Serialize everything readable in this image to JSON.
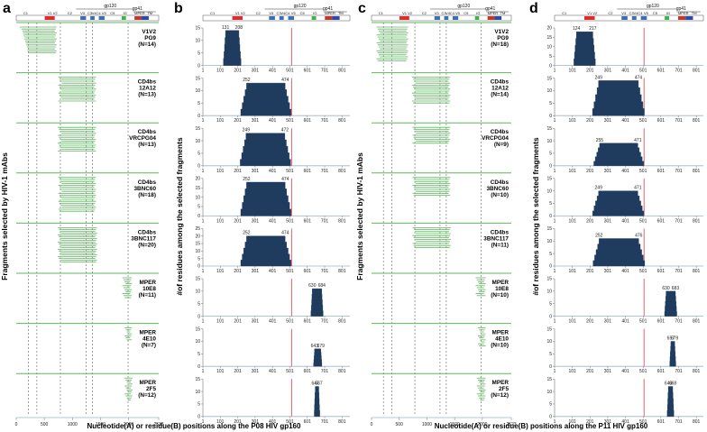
{
  "figure": {
    "panel_letters": [
      "a",
      "b",
      "c",
      "d"
    ],
    "frag_ylabel": "Fragments selected by HIV-1 mAbs",
    "hist_ylabel": "#of residues among the selected fragments",
    "xlabel_left": "Nucleotide(A) or residue(B) positions along the P08 HIV gp160",
    "xlabel_right": "Nucleotide(A) or residue(B) positions along the P11 HIV gp160"
  },
  "env_map": {
    "top_labels": [
      "gp120",
      "gp41"
    ],
    "regions": [
      "C1",
      "V1 V2",
      "C2",
      "V3",
      "C3",
      "V4",
      "C4",
      "V5",
      "C5",
      "IG",
      "MPER",
      "TM"
    ]
  },
  "row_labels": [
    [
      "V1V2",
      "PG9"
    ],
    [
      "CD4bs",
      "12A12"
    ],
    [
      "CD4bs",
      "VRCPG04"
    ],
    [
      "CD4bs",
      "3BNC60"
    ],
    [
      "CD4bs",
      "3BNC117"
    ],
    [
      "MPER",
      "10E8"
    ],
    [
      "MPER",
      "4E10"
    ],
    [
      "MPER",
      "2F5"
    ]
  ],
  "colors": {
    "bar": "#1f3b5e",
    "fragment": "#5cb85c",
    "marker": "#e8505b",
    "axis": "#9ab4cc"
  },
  "chart_data": [
    {
      "panel": "a",
      "type": "fragment-map",
      "x": {
        "label": "Nucleotide(A) or residue(B) positions along the P08 HIV gp160",
        "ticks": [
          0,
          500,
          1000,
          1500,
          2000,
          2538
        ],
        "range": [
          0,
          2538
        ]
      },
      "rows": [
        {
          "label": "V1V2 PG9",
          "n": 14,
          "start_nt": [
            60,
            90,
            110,
            120,
            130,
            140,
            150,
            160,
            170,
            180,
            190,
            200,
            205,
            210
          ],
          "end_nt": 720
        },
        {
          "label": "CD4bs 12A12",
          "n": 13,
          "start_nt": 750,
          "end_nt": 1420
        },
        {
          "label": "CD4bs VRCPG04",
          "n": 13,
          "start_nt": 740,
          "end_nt": 1420
        },
        {
          "label": "CD4bs 3BNC60",
          "n": 18,
          "start_nt": 750,
          "end_nt": 1420
        },
        {
          "label": "CD4bs 3BNC117",
          "n": 20,
          "start_nt": 740,
          "end_nt": 1440
        },
        {
          "label": "MPER 10E8",
          "n": 11,
          "start_nt": 1890,
          "end_nt": 2060
        },
        {
          "label": "MPER 4E10",
          "n": 7,
          "start_nt": 1930,
          "end_nt": 2060
        },
        {
          "label": "MPER 2F5",
          "n": 12,
          "start_nt": 1930,
          "end_nt": 2070
        }
      ]
    },
    {
      "panel": "b",
      "type": "area",
      "x": {
        "ticks": [
          1,
          101,
          201,
          301,
          401,
          501,
          601,
          701,
          801
        ],
        "range": [
          1,
          846
        ],
        "marker": 511
      },
      "histograms": [
        {
          "label": "V1V2 PG9",
          "ylim": [
            0,
            15
          ],
          "yticks": [
            0,
            5,
            10,
            15
          ],
          "plateau": 14,
          "start": 131,
          "end": 208,
          "start_label": "131",
          "end_label": "208"
        },
        {
          "label": "CD4bs 12A12",
          "ylim": [
            0,
            15
          ],
          "yticks": [
            0,
            5,
            10,
            15
          ],
          "plateau": 13,
          "start": 252,
          "end": 474,
          "start_label": "252",
          "end_label": "474"
        },
        {
          "label": "CD4bs VRCPG04",
          "ylim": [
            0,
            15
          ],
          "yticks": [
            0,
            5,
            10,
            15
          ],
          "plateau": 13,
          "start": 249,
          "end": 472,
          "start_label": "249",
          "end_label": "472"
        },
        {
          "label": "CD4bs 3BNC60",
          "ylim": [
            0,
            20
          ],
          "yticks": [
            0,
            5,
            10,
            15,
            20
          ],
          "plateau": 18,
          "start": 252,
          "end": 474,
          "start_label": "252",
          "end_label": "474"
        },
        {
          "label": "CD4bs 3BNC117",
          "ylim": [
            0,
            25
          ],
          "yticks": [
            0,
            5,
            10,
            15,
            20,
            25
          ],
          "plateau": 20,
          "start": 252,
          "end": 474,
          "start_label": "252",
          "end_label": "474"
        },
        {
          "label": "MPER 10E8",
          "ylim": [
            0,
            15
          ],
          "yticks": [
            0,
            5,
            10,
            15
          ],
          "plateau": 11,
          "start": 630,
          "end": 684,
          "start_label": "630",
          "end_label": "684"
        },
        {
          "label": "MPER 4E10",
          "ylim": [
            0,
            15
          ],
          "yticks": [
            0,
            5,
            10,
            15
          ],
          "plateau": 7,
          "start": 643,
          "end": 679,
          "start_label": "643",
          "end_label": "679"
        },
        {
          "label": "MPER 2F5",
          "ylim": [
            0,
            15
          ],
          "yticks": [
            0,
            5,
            10,
            15
          ],
          "plateau": 12,
          "start": 647,
          "end": 667,
          "start_label": "647",
          "end_label": "667"
        }
      ]
    },
    {
      "panel": "c",
      "type": "fragment-map",
      "x": {
        "label": "Nucleotide(A) or residue(B) positions along the P11 HIV gp160",
        "ticks": [
          0,
          500,
          1000,
          1500,
          2000,
          2523
        ],
        "range": [
          0,
          2523
        ]
      },
      "rows": [
        {
          "label": "V1V2 PG9",
          "n": 18,
          "start_nt": 90,
          "end_nt": 660
        },
        {
          "label": "CD4bs 12A12",
          "n": 14,
          "start_nt": 730,
          "end_nt": 1420
        },
        {
          "label": "CD4bs VRCPG04",
          "n": 9,
          "start_nt": 740,
          "end_nt": 1420
        },
        {
          "label": "CD4bs 3BNC60",
          "n": 10,
          "start_nt": 740,
          "end_nt": 1420
        },
        {
          "label": "CD4bs 3BNC117",
          "n": 11,
          "start_nt": 740,
          "end_nt": 1430
        },
        {
          "label": "MPER 10E8",
          "n": 10,
          "start_nt": 1880,
          "end_nt": 2060
        },
        {
          "label": "MPER 4E10",
          "n": 10,
          "start_nt": 1920,
          "end_nt": 2060
        },
        {
          "label": "MPER 2F5",
          "n": 12,
          "start_nt": 1900,
          "end_nt": 2060
        }
      ]
    },
    {
      "panel": "d",
      "type": "area",
      "x": {
        "ticks": [
          1,
          101,
          201,
          301,
          401,
          501,
          601,
          701,
          801
        ],
        "range": [
          1,
          841
        ],
        "marker": 506
      },
      "histograms": [
        {
          "label": "V1V2 PG9",
          "ylim": [
            0,
            20
          ],
          "yticks": [
            0,
            5,
            10,
            15,
            20
          ],
          "plateau": 18,
          "start": 124,
          "end": 217,
          "start_label": "124",
          "end_label": "217"
        },
        {
          "label": "CD4bs 12A12",
          "ylim": [
            0,
            15
          ],
          "yticks": [
            0,
            5,
            10,
            15
          ],
          "plateau": 14,
          "start": 249,
          "end": 474,
          "start_label": "249",
          "end_label": "474"
        },
        {
          "label": "CD4bs VRCPG04",
          "ylim": [
            0,
            15
          ],
          "yticks": [
            0,
            5,
            10,
            15
          ],
          "plateau": 9,
          "start": 255,
          "end": 471,
          "start_label": "255",
          "end_label": "471"
        },
        {
          "label": "CD4bs 3BNC60",
          "ylim": [
            0,
            15
          ],
          "yticks": [
            0,
            5,
            10,
            15
          ],
          "plateau": 10,
          "start": 249,
          "end": 471,
          "start_label": "249",
          "end_label": "471"
        },
        {
          "label": "CD4bs 3BNC117",
          "ylim": [
            0,
            15
          ],
          "yticks": [
            0,
            5,
            10,
            15
          ],
          "plateau": 11,
          "start": 252,
          "end": 476,
          "start_label": "252",
          "end_label": "476"
        },
        {
          "label": "MPER 10E8",
          "ylim": [
            0,
            15
          ],
          "yticks": [
            0,
            5,
            10,
            15
          ],
          "plateau": 10,
          "start": 630,
          "end": 683,
          "start_label": "630",
          "end_label": "683"
        },
        {
          "label": "MPER 4E10",
          "ylim": [
            0,
            15
          ],
          "yticks": [
            0,
            5,
            10,
            15
          ],
          "plateau": 10,
          "start": 657,
          "end": 679,
          "start_label": "657",
          "end_label": "679"
        },
        {
          "label": "MPER 2F5",
          "ylim": [
            0,
            15
          ],
          "yticks": [
            0,
            5,
            10,
            15
          ],
          "plateau": 12,
          "start": 643,
          "end": 668,
          "start_label": "643",
          "end_label": "668"
        }
      ]
    }
  ]
}
